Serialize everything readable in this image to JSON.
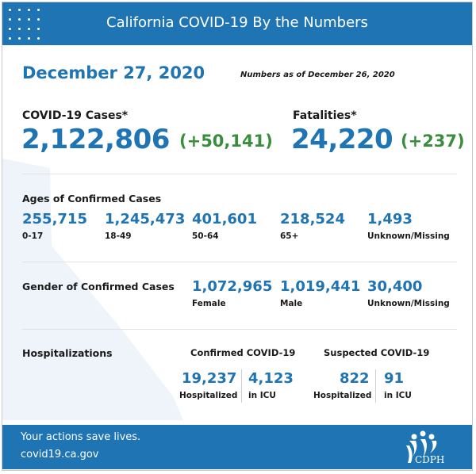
{
  "header": {
    "title": "California COVID-19 By the Numbers"
  },
  "date": "December 27, 2020",
  "as_of": "Numbers as of December 26, 2020",
  "cases": {
    "label": "COVID-19 Cases*",
    "value": "2,122,806",
    "delta": "(+50,141)"
  },
  "fatalities": {
    "label": "Fatalities*",
    "value": "24,220",
    "delta": "(+237)"
  },
  "ages": {
    "title": "Ages of Confirmed Cases",
    "items": [
      {
        "value": "255,715",
        "label": "0-17"
      },
      {
        "value": "1,245,473",
        "label": "18-49"
      },
      {
        "value": "401,601",
        "label": "50-64"
      },
      {
        "value": "218,524",
        "label": "65+"
      },
      {
        "value": "1,493",
        "label": "Unknown/Missing"
      }
    ]
  },
  "gender": {
    "title": "Gender of Confirmed Cases",
    "items": [
      {
        "value": "1,072,965",
        "label": "Female"
      },
      {
        "value": "1,019,441",
        "label": "Male"
      },
      {
        "value": "30,400",
        "label": "Unknown/Missing"
      }
    ]
  },
  "hospitalizations": {
    "title": "Hospitalizations",
    "confirmed": {
      "title": "Confirmed COVID-19",
      "hospitalized": "19,237",
      "hospitalized_label": "Hospitalized",
      "icu": "4,123",
      "icu_label": "in ICU"
    },
    "suspected": {
      "title": "Suspected COVID-19",
      "hospitalized": "822",
      "hospitalized_label": "Hospitalized",
      "icu": "91",
      "icu_label": "in ICU"
    }
  },
  "footer": {
    "line1": "Your actions save lives.",
    "line2": "covid19.ca.gov",
    "logo_text": "CDPH"
  },
  "colors": {
    "brand_blue": "#1f74b3",
    "delta_green": "#3a8d3c"
  }
}
